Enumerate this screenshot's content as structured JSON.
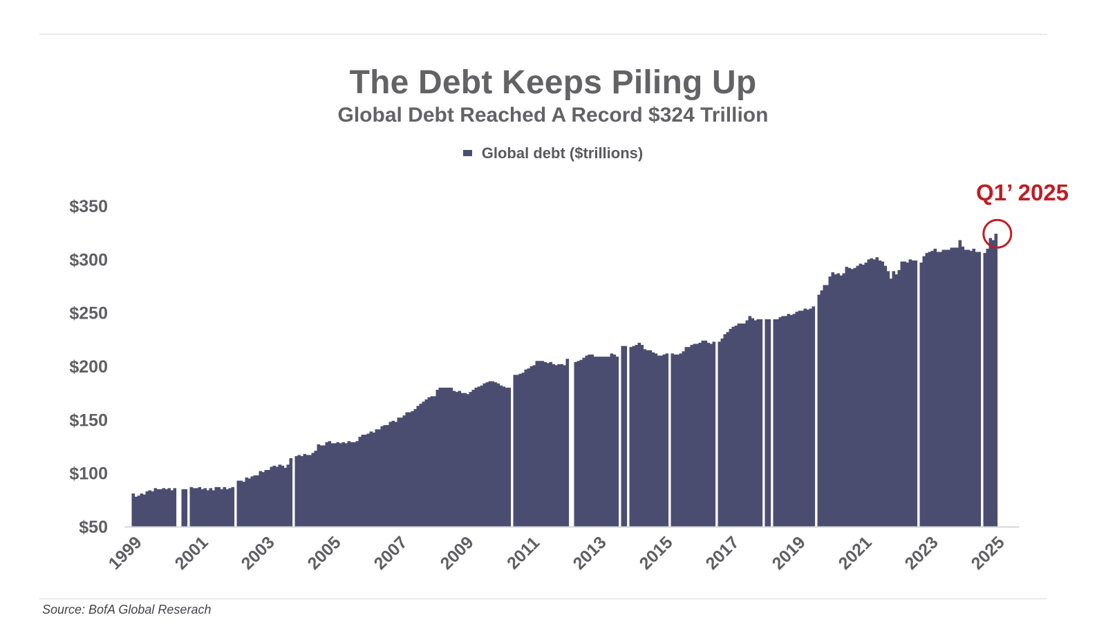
{
  "header": {
    "title": "The Debt Keeps Piling Up",
    "subtitle": "Global Debt Reached A Record $324 Trillion"
  },
  "legend": {
    "label": "Global debt ($trillions)"
  },
  "source": "Source: BofA Global Reserach",
  "colors": {
    "bar": "#4b4d70",
    "annotation": "#bf1e23",
    "axis": "#d6d6d6",
    "text": "#5f5f63"
  },
  "chart_data": {
    "type": "bar",
    "series": [
      {
        "name": "Global debt ($trillions)"
      }
    ],
    "y_ticks": [
      "$50",
      "$100",
      "$150",
      "$200",
      "$250",
      "$300",
      "$350"
    ],
    "y_tick_values": [
      50,
      100,
      150,
      200,
      250,
      300,
      350
    ],
    "ylim": [
      50,
      350
    ],
    "x_ticks": [
      "1999",
      "2001",
      "2003",
      "2005",
      "2007",
      "2009",
      "2011",
      "2013",
      "2015",
      "2017",
      "2019",
      "2021",
      "2023",
      "2025"
    ],
    "x_tick_values": [
      1999,
      2001,
      2003,
      2005,
      2007,
      2009,
      2011,
      2013,
      2015,
      2017,
      2019,
      2021,
      2023,
      2025
    ],
    "xlim": [
      1998.9,
      2025.4
    ],
    "grid": false,
    "legend_position": "top-center",
    "annotation": {
      "label": "Q1’ 2025",
      "x": 2025.0,
      "y": 324
    },
    "points": [
      {
        "x": 1999.0,
        "y": 81
      },
      {
        "x": 1999.083,
        "y": 78
      },
      {
        "x": 1999.167,
        "y": 79
      },
      {
        "x": 1999.25,
        "y": 81
      },
      {
        "x": 1999.333,
        "y": 80
      },
      {
        "x": 1999.417,
        "y": 83
      },
      {
        "x": 1999.5,
        "y": 84
      },
      {
        "x": 1999.583,
        "y": 83
      },
      {
        "x": 1999.667,
        "y": 86
      },
      {
        "x": 1999.75,
        "y": 85
      },
      {
        "x": 1999.833,
        "y": 85
      },
      {
        "x": 1999.917,
        "y": 86
      },
      {
        "x": 2000.0,
        "y": 85
      },
      {
        "x": 2000.083,
        "y": 86
      },
      {
        "x": 2000.167,
        "y": 84
      },
      {
        "x": 2000.25,
        "y": 86
      },
      {
        "x": 2000.5,
        "y": 85
      },
      {
        "x": 2000.583,
        "y": 85
      },
      {
        "x": 2000.75,
        "y": 87
      },
      {
        "x": 2000.833,
        "y": 86
      },
      {
        "x": 2000.917,
        "y": 86
      },
      {
        "x": 2001.0,
        "y": 87
      },
      {
        "x": 2001.083,
        "y": 85
      },
      {
        "x": 2001.167,
        "y": 86
      },
      {
        "x": 2001.25,
        "y": 84
      },
      {
        "x": 2001.333,
        "y": 86
      },
      {
        "x": 2001.417,
        "y": 84
      },
      {
        "x": 2001.5,
        "y": 87
      },
      {
        "x": 2001.583,
        "y": 87
      },
      {
        "x": 2001.667,
        "y": 85
      },
      {
        "x": 2001.75,
        "y": 87
      },
      {
        "x": 2001.833,
        "y": 85
      },
      {
        "x": 2001.917,
        "y": 86
      },
      {
        "x": 2002.0,
        "y": 87
      },
      {
        "x": 2002.167,
        "y": 93
      },
      {
        "x": 2002.25,
        "y": 93
      },
      {
        "x": 2002.333,
        "y": 92
      },
      {
        "x": 2002.417,
        "y": 96
      },
      {
        "x": 2002.5,
        "y": 95
      },
      {
        "x": 2002.583,
        "y": 97
      },
      {
        "x": 2002.667,
        "y": 98
      },
      {
        "x": 2002.75,
        "y": 98
      },
      {
        "x": 2002.833,
        "y": 102
      },
      {
        "x": 2002.917,
        "y": 101
      },
      {
        "x": 2003.0,
        "y": 103
      },
      {
        "x": 2003.083,
        "y": 103
      },
      {
        "x": 2003.167,
        "y": 106
      },
      {
        "x": 2003.25,
        "y": 107
      },
      {
        "x": 2003.333,
        "y": 106
      },
      {
        "x": 2003.417,
        "y": 108
      },
      {
        "x": 2003.5,
        "y": 107
      },
      {
        "x": 2003.583,
        "y": 105
      },
      {
        "x": 2003.667,
        "y": 108
      },
      {
        "x": 2003.75,
        "y": 114
      },
      {
        "x": 2003.917,
        "y": 116
      },
      {
        "x": 2004.0,
        "y": 117
      },
      {
        "x": 2004.083,
        "y": 116
      },
      {
        "x": 2004.167,
        "y": 118
      },
      {
        "x": 2004.25,
        "y": 117
      },
      {
        "x": 2004.333,
        "y": 117
      },
      {
        "x": 2004.417,
        "y": 119
      },
      {
        "x": 2004.5,
        "y": 121
      },
      {
        "x": 2004.583,
        "y": 127
      },
      {
        "x": 2004.667,
        "y": 126
      },
      {
        "x": 2004.75,
        "y": 126
      },
      {
        "x": 2004.833,
        "y": 129
      },
      {
        "x": 2004.917,
        "y": 130
      },
      {
        "x": 2005.0,
        "y": 128
      },
      {
        "x": 2005.083,
        "y": 128
      },
      {
        "x": 2005.167,
        "y": 129
      },
      {
        "x": 2005.25,
        "y": 128
      },
      {
        "x": 2005.333,
        "y": 129
      },
      {
        "x": 2005.417,
        "y": 128
      },
      {
        "x": 2005.5,
        "y": 130
      },
      {
        "x": 2005.583,
        "y": 129
      },
      {
        "x": 2005.667,
        "y": 129
      },
      {
        "x": 2005.75,
        "y": 130
      },
      {
        "x": 2005.833,
        "y": 134
      },
      {
        "x": 2005.917,
        "y": 136
      },
      {
        "x": 2006.0,
        "y": 136
      },
      {
        "x": 2006.083,
        "y": 137
      },
      {
        "x": 2006.167,
        "y": 139
      },
      {
        "x": 2006.25,
        "y": 138
      },
      {
        "x": 2006.333,
        "y": 141
      },
      {
        "x": 2006.417,
        "y": 141
      },
      {
        "x": 2006.5,
        "y": 144
      },
      {
        "x": 2006.583,
        "y": 145
      },
      {
        "x": 2006.667,
        "y": 145
      },
      {
        "x": 2006.75,
        "y": 148
      },
      {
        "x": 2006.833,
        "y": 149
      },
      {
        "x": 2006.917,
        "y": 148
      },
      {
        "x": 2007.0,
        "y": 152
      },
      {
        "x": 2007.083,
        "y": 152
      },
      {
        "x": 2007.167,
        "y": 154
      },
      {
        "x": 2007.25,
        "y": 157
      },
      {
        "x": 2007.333,
        "y": 157
      },
      {
        "x": 2007.417,
        "y": 158
      },
      {
        "x": 2007.5,
        "y": 160
      },
      {
        "x": 2007.583,
        "y": 163
      },
      {
        "x": 2007.667,
        "y": 165
      },
      {
        "x": 2007.75,
        "y": 167
      },
      {
        "x": 2007.833,
        "y": 169
      },
      {
        "x": 2007.917,
        "y": 171
      },
      {
        "x": 2008.0,
        "y": 172
      },
      {
        "x": 2008.083,
        "y": 172
      },
      {
        "x": 2008.167,
        "y": 178
      },
      {
        "x": 2008.25,
        "y": 180
      },
      {
        "x": 2008.333,
        "y": 180
      },
      {
        "x": 2008.417,
        "y": 180
      },
      {
        "x": 2008.5,
        "y": 180
      },
      {
        "x": 2008.583,
        "y": 180
      },
      {
        "x": 2008.667,
        "y": 177
      },
      {
        "x": 2008.75,
        "y": 176
      },
      {
        "x": 2008.833,
        "y": 177
      },
      {
        "x": 2008.917,
        "y": 175
      },
      {
        "x": 2009.0,
        "y": 175
      },
      {
        "x": 2009.083,
        "y": 174
      },
      {
        "x": 2009.167,
        "y": 176
      },
      {
        "x": 2009.25,
        "y": 178
      },
      {
        "x": 2009.333,
        "y": 180
      },
      {
        "x": 2009.417,
        "y": 181
      },
      {
        "x": 2009.5,
        "y": 182
      },
      {
        "x": 2009.583,
        "y": 184
      },
      {
        "x": 2009.667,
        "y": 185
      },
      {
        "x": 2009.75,
        "y": 186
      },
      {
        "x": 2009.833,
        "y": 186
      },
      {
        "x": 2009.917,
        "y": 185
      },
      {
        "x": 2010.0,
        "y": 184
      },
      {
        "x": 2010.083,
        "y": 182
      },
      {
        "x": 2010.167,
        "y": 181
      },
      {
        "x": 2010.25,
        "y": 180
      },
      {
        "x": 2010.333,
        "y": 180
      },
      {
        "x": 2010.5,
        "y": 192
      },
      {
        "x": 2010.583,
        "y": 192
      },
      {
        "x": 2010.667,
        "y": 193
      },
      {
        "x": 2010.75,
        "y": 194
      },
      {
        "x": 2010.833,
        "y": 197
      },
      {
        "x": 2010.917,
        "y": 198
      },
      {
        "x": 2011.0,
        "y": 200
      },
      {
        "x": 2011.083,
        "y": 201
      },
      {
        "x": 2011.167,
        "y": 205
      },
      {
        "x": 2011.25,
        "y": 205
      },
      {
        "x": 2011.333,
        "y": 205
      },
      {
        "x": 2011.417,
        "y": 204
      },
      {
        "x": 2011.5,
        "y": 203
      },
      {
        "x": 2011.583,
        "y": 204
      },
      {
        "x": 2011.667,
        "y": 202
      },
      {
        "x": 2011.75,
        "y": 201
      },
      {
        "x": 2011.833,
        "y": 202
      },
      {
        "x": 2011.917,
        "y": 202
      },
      {
        "x": 2012.0,
        "y": 201
      },
      {
        "x": 2012.083,
        "y": 207
      },
      {
        "x": 2012.333,
        "y": 204
      },
      {
        "x": 2012.417,
        "y": 205
      },
      {
        "x": 2012.5,
        "y": 206
      },
      {
        "x": 2012.583,
        "y": 208
      },
      {
        "x": 2012.667,
        "y": 210
      },
      {
        "x": 2012.75,
        "y": 211
      },
      {
        "x": 2012.833,
        "y": 211
      },
      {
        "x": 2012.917,
        "y": 209
      },
      {
        "x": 2013.0,
        "y": 209
      },
      {
        "x": 2013.083,
        "y": 209
      },
      {
        "x": 2013.167,
        "y": 209
      },
      {
        "x": 2013.25,
        "y": 209
      },
      {
        "x": 2013.333,
        "y": 209
      },
      {
        "x": 2013.417,
        "y": 212
      },
      {
        "x": 2013.5,
        "y": 211
      },
      {
        "x": 2013.583,
        "y": 209
      },
      {
        "x": 2013.75,
        "y": 219
      },
      {
        "x": 2013.833,
        "y": 219
      },
      {
        "x": 2014.0,
        "y": 218
      },
      {
        "x": 2014.083,
        "y": 219
      },
      {
        "x": 2014.167,
        "y": 220
      },
      {
        "x": 2014.25,
        "y": 222
      },
      {
        "x": 2014.333,
        "y": 220
      },
      {
        "x": 2014.417,
        "y": 216
      },
      {
        "x": 2014.5,
        "y": 215
      },
      {
        "x": 2014.583,
        "y": 215
      },
      {
        "x": 2014.667,
        "y": 213
      },
      {
        "x": 2014.75,
        "y": 212
      },
      {
        "x": 2014.833,
        "y": 210
      },
      {
        "x": 2014.917,
        "y": 210
      },
      {
        "x": 2015.0,
        "y": 211
      },
      {
        "x": 2015.083,
        "y": 212
      },
      {
        "x": 2015.25,
        "y": 212
      },
      {
        "x": 2015.333,
        "y": 211
      },
      {
        "x": 2015.417,
        "y": 211
      },
      {
        "x": 2015.5,
        "y": 212
      },
      {
        "x": 2015.583,
        "y": 214
      },
      {
        "x": 2015.667,
        "y": 218
      },
      {
        "x": 2015.75,
        "y": 218
      },
      {
        "x": 2015.833,
        "y": 220
      },
      {
        "x": 2015.917,
        "y": 221
      },
      {
        "x": 2016.0,
        "y": 221
      },
      {
        "x": 2016.083,
        "y": 222
      },
      {
        "x": 2016.167,
        "y": 224
      },
      {
        "x": 2016.25,
        "y": 224
      },
      {
        "x": 2016.333,
        "y": 222
      },
      {
        "x": 2016.417,
        "y": 221
      },
      {
        "x": 2016.5,
        "y": 223
      },
      {
        "x": 2016.667,
        "y": 223
      },
      {
        "x": 2016.75,
        "y": 226
      },
      {
        "x": 2016.833,
        "y": 230
      },
      {
        "x": 2016.917,
        "y": 232
      },
      {
        "x": 2017.0,
        "y": 235
      },
      {
        "x": 2017.083,
        "y": 237
      },
      {
        "x": 2017.167,
        "y": 238
      },
      {
        "x": 2017.25,
        "y": 240
      },
      {
        "x": 2017.333,
        "y": 240
      },
      {
        "x": 2017.417,
        "y": 240
      },
      {
        "x": 2017.5,
        "y": 243
      },
      {
        "x": 2017.583,
        "y": 247
      },
      {
        "x": 2017.667,
        "y": 245
      },
      {
        "x": 2017.75,
        "y": 243
      },
      {
        "x": 2017.833,
        "y": 244
      },
      {
        "x": 2017.917,
        "y": 244
      },
      {
        "x": 2018.083,
        "y": 244
      },
      {
        "x": 2018.167,
        "y": 244
      },
      {
        "x": 2018.333,
        "y": 244
      },
      {
        "x": 2018.417,
        "y": 244
      },
      {
        "x": 2018.5,
        "y": 246
      },
      {
        "x": 2018.583,
        "y": 247
      },
      {
        "x": 2018.667,
        "y": 247
      },
      {
        "x": 2018.75,
        "y": 249
      },
      {
        "x": 2018.833,
        "y": 248
      },
      {
        "x": 2018.917,
        "y": 249
      },
      {
        "x": 2019.0,
        "y": 251
      },
      {
        "x": 2019.083,
        "y": 252
      },
      {
        "x": 2019.167,
        "y": 252
      },
      {
        "x": 2019.25,
        "y": 254
      },
      {
        "x": 2019.333,
        "y": 253
      },
      {
        "x": 2019.417,
        "y": 254
      },
      {
        "x": 2019.5,
        "y": 256
      },
      {
        "x": 2019.667,
        "y": 267
      },
      {
        "x": 2019.75,
        "y": 271
      },
      {
        "x": 2019.833,
        "y": 276
      },
      {
        "x": 2019.917,
        "y": 276
      },
      {
        "x": 2020.0,
        "y": 284
      },
      {
        "x": 2020.083,
        "y": 288
      },
      {
        "x": 2020.167,
        "y": 286
      },
      {
        "x": 2020.25,
        "y": 287
      },
      {
        "x": 2020.333,
        "y": 285
      },
      {
        "x": 2020.417,
        "y": 287
      },
      {
        "x": 2020.5,
        "y": 293
      },
      {
        "x": 2020.583,
        "y": 292
      },
      {
        "x": 2020.667,
        "y": 291
      },
      {
        "x": 2020.75,
        "y": 292
      },
      {
        "x": 2020.833,
        "y": 294
      },
      {
        "x": 2020.917,
        "y": 296
      },
      {
        "x": 2021.0,
        "y": 295
      },
      {
        "x": 2021.083,
        "y": 297
      },
      {
        "x": 2021.167,
        "y": 300
      },
      {
        "x": 2021.25,
        "y": 301
      },
      {
        "x": 2021.333,
        "y": 300
      },
      {
        "x": 2021.417,
        "y": 302
      },
      {
        "x": 2021.5,
        "y": 299
      },
      {
        "x": 2021.583,
        "y": 298
      },
      {
        "x": 2021.667,
        "y": 294
      },
      {
        "x": 2021.75,
        "y": 289
      },
      {
        "x": 2021.833,
        "y": 282
      },
      {
        "x": 2021.917,
        "y": 289
      },
      {
        "x": 2022.0,
        "y": 286
      },
      {
        "x": 2022.083,
        "y": 290
      },
      {
        "x": 2022.167,
        "y": 298
      },
      {
        "x": 2022.25,
        "y": 298
      },
      {
        "x": 2022.333,
        "y": 297
      },
      {
        "x": 2022.417,
        "y": 300
      },
      {
        "x": 2022.5,
        "y": 299
      },
      {
        "x": 2022.583,
        "y": 299
      },
      {
        "x": 2022.75,
        "y": 297
      },
      {
        "x": 2022.833,
        "y": 303
      },
      {
        "x": 2022.917,
        "y": 306
      },
      {
        "x": 2023.0,
        "y": 307
      },
      {
        "x": 2023.083,
        "y": 308
      },
      {
        "x": 2023.167,
        "y": 310
      },
      {
        "x": 2023.25,
        "y": 307
      },
      {
        "x": 2023.333,
        "y": 307
      },
      {
        "x": 2023.417,
        "y": 309
      },
      {
        "x": 2023.5,
        "y": 309
      },
      {
        "x": 2023.583,
        "y": 309
      },
      {
        "x": 2023.667,
        "y": 311
      },
      {
        "x": 2023.75,
        "y": 311
      },
      {
        "x": 2023.833,
        "y": 311
      },
      {
        "x": 2023.917,
        "y": 318
      },
      {
        "x": 2024.0,
        "y": 312
      },
      {
        "x": 2024.083,
        "y": 309
      },
      {
        "x": 2024.167,
        "y": 309
      },
      {
        "x": 2024.25,
        "y": 308
      },
      {
        "x": 2024.333,
        "y": 310
      },
      {
        "x": 2024.417,
        "y": 307
      },
      {
        "x": 2024.5,
        "y": 307
      },
      {
        "x": 2024.667,
        "y": 306
      },
      {
        "x": 2024.75,
        "y": 310
      },
      {
        "x": 2024.833,
        "y": 320
      },
      {
        "x": 2024.917,
        "y": 318
      },
      {
        "x": 2025.0,
        "y": 324
      }
    ]
  }
}
